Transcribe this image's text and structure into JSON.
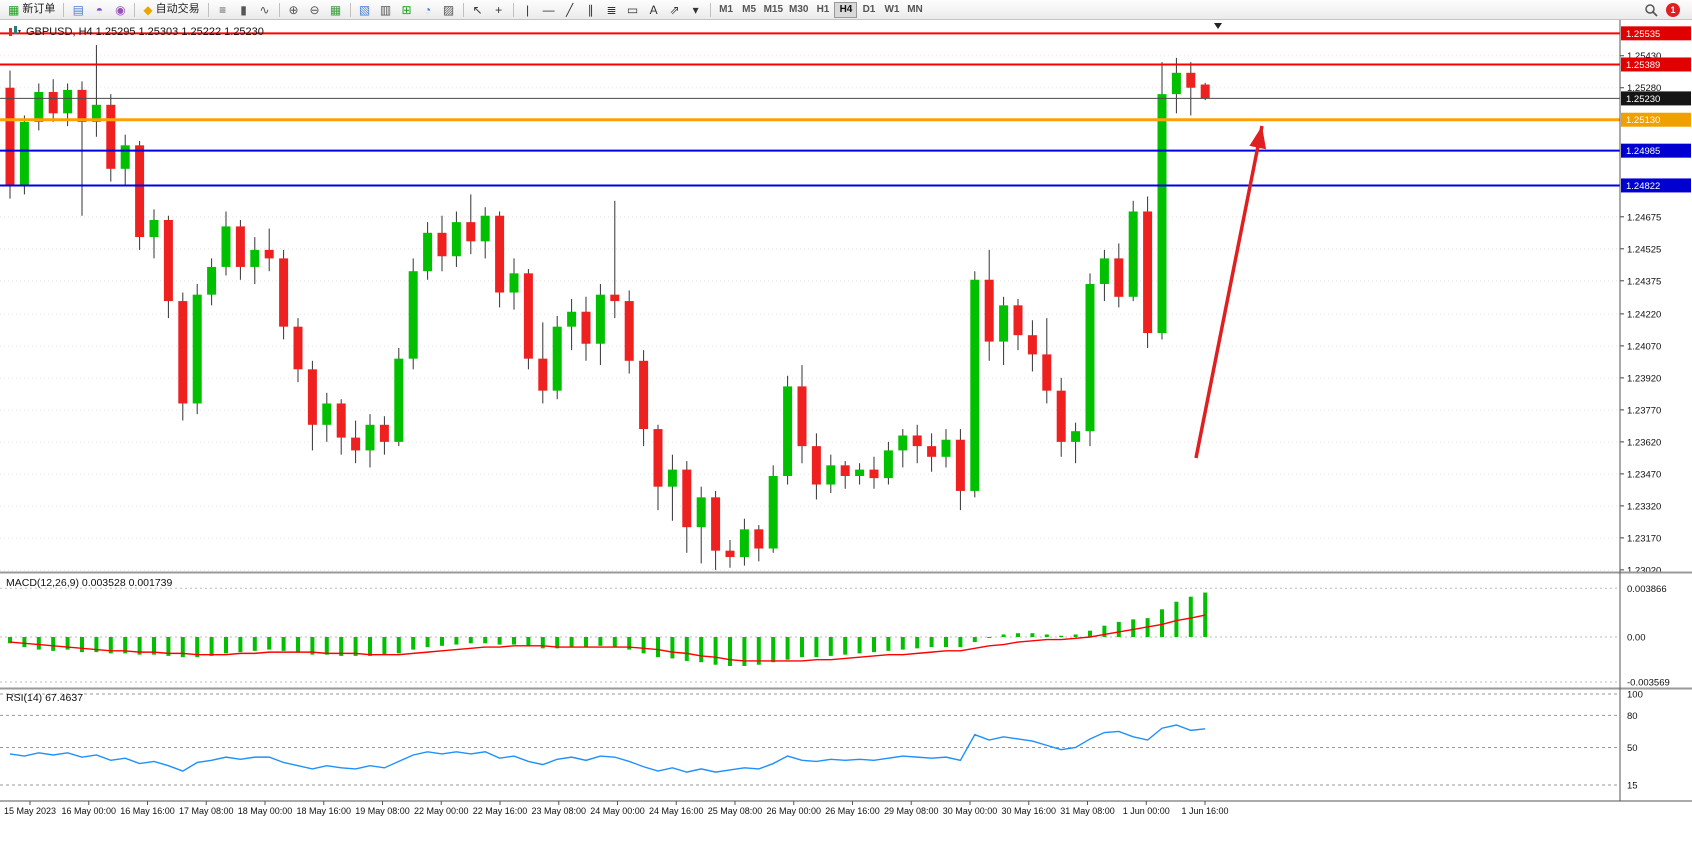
{
  "toolbar": {
    "items": [
      {
        "name": "new-order-button",
        "glyph": "▦",
        "color": "#1f9d1f",
        "label": "新订单"
      },
      {
        "sep": true
      },
      {
        "name": "terminal-icon-button",
        "glyph": "▤",
        "color": "#4a7fd4"
      },
      {
        "name": "profile-icon-button",
        "glyph": "◓",
        "color": "#7a4fd0"
      },
      {
        "name": "news-icon-button",
        "glyph": "◉",
        "color": "#9a4fc0"
      },
      {
        "sep": true
      },
      {
        "name": "auto-trading-button",
        "glyph": "◆",
        "color": "#e8a800",
        "label": "自动交易"
      },
      {
        "sep": true
      },
      {
        "name": "bar-chart-button",
        "glyph": "≡",
        "color": "#555555"
      },
      {
        "name": "candlestick-chart-button",
        "glyph": "▮",
        "color": "#555555"
      },
      {
        "name": "line-chart-button",
        "glyph": "∿",
        "color": "#555555"
      },
      {
        "sep": true
      },
      {
        "name": "zoom-in-button",
        "glyph": "⊕",
        "color": "#555555"
      },
      {
        "name": "zoom-out-button",
        "glyph": "⊖",
        "color": "#555555"
      },
      {
        "name": "tile-windows-button",
        "glyph": "▦",
        "color": "#3a9d3a"
      },
      {
        "sep": true
      },
      {
        "name": "new-chart-button",
        "glyph": "▧",
        "color": "#4a7fd4"
      },
      {
        "name": "profiles-button",
        "glyph": "▥",
        "color": "#555555"
      },
      {
        "name": "add-indicator-button",
        "glyph": "⊞",
        "color": "#1f9d1f"
      },
      {
        "name": "periods-button",
        "glyph": "◔",
        "color": "#4a7fd4"
      },
      {
        "name": "templates-button",
        "glyph": "▨",
        "color": "#555555"
      },
      {
        "sep": true
      },
      {
        "name": "cursor-button",
        "glyph": "↖",
        "color": "#333333"
      },
      {
        "name": "crosshair-button",
        "glyph": "+",
        "color": "#333333"
      },
      {
        "sep": true
      },
      {
        "name": "vertical-line-button",
        "glyph": "|",
        "color": "#333333"
      },
      {
        "name": "horizontal-line-button",
        "glyph": "—",
        "color": "#333333"
      },
      {
        "name": "trendline-button",
        "glyph": "╱",
        "color": "#333333"
      },
      {
        "name": "channel-button",
        "glyph": "∥",
        "color": "#333333"
      },
      {
        "name": "fibonacci-button",
        "glyph": "≣",
        "color": "#333333"
      },
      {
        "name": "shapes-button",
        "glyph": "▭",
        "color": "#333333"
      },
      {
        "name": "text-button",
        "glyph": "A",
        "color": "#333333"
      },
      {
        "name": "arrows-button",
        "glyph": "⇗",
        "color": "#333333"
      },
      {
        "name": "objects-dropdown-button",
        "glyph": "▾",
        "color": "#333333"
      },
      {
        "sep": true
      }
    ],
    "timeframes": [
      "M1",
      "M5",
      "M15",
      "M30",
      "H1",
      "H4",
      "D1",
      "W1",
      "MN"
    ],
    "active_timeframe": "H4",
    "notification_count": "1"
  },
  "chart": {
    "symbol_ohlc": "GBPUSD, H4 1.25295 1.25303 1.25222 1.25230",
    "up_color": "#00c000",
    "down_color": "#ee2020",
    "wick_color": "#333333",
    "arrow_color": "#e02020",
    "price_lines": [
      {
        "name": "resistance-line-upper",
        "label": "1.25535",
        "value": 1.25535,
        "color": "#ff0000",
        "label_bg": "#e00000",
        "width": 2
      },
      {
        "name": "resistance-line-lower",
        "label": "1.25389",
        "value": 1.25389,
        "color": "#ff0000",
        "label_bg": "#e00000",
        "width": 2
      },
      {
        "name": "bid-price-line",
        "label": "1.25230",
        "value": 1.2523,
        "color": "#4a4a4a",
        "label_bg": "#151515",
        "width": 1
      },
      {
        "name": "pivot-line-orange",
        "label": "1.25130",
        "value": 1.2513,
        "color": "#ffa000",
        "label_bg": "#f0a000",
        "width": 3
      },
      {
        "name": "support-line-upper",
        "label": "1.24985",
        "value": 1.24985,
        "color": "#0000e0",
        "label_bg": "#0000d0",
        "width": 2
      },
      {
        "name": "support-line-lower",
        "label": "1.24822",
        "value": 1.24822,
        "color": "#0000e0",
        "label_bg": "#0000d0",
        "width": 2
      }
    ]
  },
  "macd": {
    "label": "MACD(12,26,9) 0.003528 0.001739",
    "histogram_color": "#00c000",
    "signal_color": "#ff0000",
    "scale": [
      {
        "label": "0.003866",
        "value": 0.003866
      },
      {
        "label": "0.00",
        "value": 0
      },
      {
        "label": "-0.003569",
        "value": -0.003569
      }
    ]
  },
  "rsi": {
    "label": "RSI(14) 67.4637",
    "line_color": "#1E90FF",
    "levels": [
      {
        "label": "100",
        "value": 100
      },
      {
        "label": "80",
        "value": 80
      },
      {
        "label": "50",
        "value": 50
      },
      {
        "label": "15",
        "value": 15
      }
    ]
  },
  "chart_data": {
    "type": "candlestick",
    "symbol": "GBPUSD",
    "timeframe": "H4",
    "current_ohlc": {
      "open": "1.25295",
      "high": "1.25303",
      "low": "1.25222",
      "close": "1.25230"
    },
    "price_axis_ticks": [
      "1.25430",
      "1.25280",
      "1.24675",
      "1.24525",
      "1.24375",
      "1.24220",
      "1.24070",
      "1.23920",
      "1.23770",
      "1.23620",
      "1.23470",
      "1.23320",
      "1.23170",
      "1.23020"
    ],
    "time_labels": [
      "15 May 2023",
      "16 May 00:00",
      "16 May 16:00",
      "17 May 08:00",
      "18 May 00:00",
      "18 May 16:00",
      "19 May 08:00",
      "22 May 00:00",
      "22 May 16:00",
      "23 May 08:00",
      "24 May 00:00",
      "24 May 16:00",
      "25 May 08:00",
      "26 May 00:00",
      "26 May 16:00",
      "29 May 08:00",
      "30 May 00:00",
      "30 May 16:00",
      "31 May 08:00",
      "1 Jun 00:00",
      "1 Jun 16:00"
    ],
    "ohlc": [
      [
        1.2528,
        1.2536,
        1.2476,
        1.2482
      ],
      [
        1.2482,
        1.2515,
        1.2478,
        1.2512
      ],
      [
        1.2512,
        1.253,
        1.2508,
        1.2526
      ],
      [
        1.2526,
        1.2532,
        1.2512,
        1.2516
      ],
      [
        1.2516,
        1.253,
        1.251,
        1.2527
      ],
      [
        1.2527,
        1.2531,
        1.2468,
        1.2512
      ],
      [
        1.2512,
        1.2548,
        1.2505,
        1.252
      ],
      [
        1.252,
        1.2525,
        1.2484,
        1.249
      ],
      [
        1.249,
        1.2506,
        1.2482,
        1.2501
      ],
      [
        1.2501,
        1.2503,
        1.2452,
        1.2458
      ],
      [
        1.2458,
        1.2471,
        1.2448,
        1.2466
      ],
      [
        1.2466,
        1.2468,
        1.242,
        1.2428
      ],
      [
        1.2428,
        1.2432,
        1.2372,
        1.238
      ],
      [
        1.238,
        1.2436,
        1.2375,
        1.2431
      ],
      [
        1.2431,
        1.2448,
        1.2426,
        1.2444
      ],
      [
        1.2444,
        1.247,
        1.244,
        1.2463
      ],
      [
        1.2463,
        1.2466,
        1.2438,
        1.2444
      ],
      [
        1.2444,
        1.2458,
        1.2436,
        1.2452
      ],
      [
        1.2452,
        1.2462,
        1.2442,
        1.2448
      ],
      [
        1.2448,
        1.2452,
        1.241,
        1.2416
      ],
      [
        1.2416,
        1.242,
        1.239,
        1.2396
      ],
      [
        1.2396,
        1.24,
        1.2358,
        1.237
      ],
      [
        1.237,
        1.2385,
        1.2362,
        1.238
      ],
      [
        1.238,
        1.2382,
        1.2356,
        1.2364
      ],
      [
        1.2364,
        1.2372,
        1.2352,
        1.2358
      ],
      [
        1.2358,
        1.2375,
        1.235,
        1.237
      ],
      [
        1.237,
        1.2374,
        1.2356,
        1.2362
      ],
      [
        1.2362,
        1.2406,
        1.236,
        1.2401
      ],
      [
        1.2401,
        1.2448,
        1.2396,
        1.2442
      ],
      [
        1.2442,
        1.2465,
        1.2438,
        1.246
      ],
      [
        1.246,
        1.2468,
        1.2442,
        1.2449
      ],
      [
        1.2449,
        1.247,
        1.2444,
        1.2465
      ],
      [
        1.2465,
        1.2478,
        1.245,
        1.2456
      ],
      [
        1.2456,
        1.2472,
        1.2448,
        1.2468
      ],
      [
        1.2468,
        1.247,
        1.2425,
        1.2432
      ],
      [
        1.2432,
        1.2448,
        1.2424,
        1.2441
      ],
      [
        1.2441,
        1.2443,
        1.2396,
        1.2401
      ],
      [
        1.2401,
        1.2418,
        1.238,
        1.2386
      ],
      [
        1.2386,
        1.2421,
        1.2382,
        1.2416
      ],
      [
        1.2416,
        1.2429,
        1.2405,
        1.2423
      ],
      [
        1.2423,
        1.243,
        1.24,
        1.2408
      ],
      [
        1.2408,
        1.2436,
        1.2398,
        1.2431
      ],
      [
        1.2431,
        1.2475,
        1.242,
        1.2428
      ],
      [
        1.2428,
        1.2433,
        1.2394,
        1.24
      ],
      [
        1.24,
        1.2405,
        1.236,
        1.2368
      ],
      [
        1.2368,
        1.237,
        1.233,
        1.2341
      ],
      [
        1.2341,
        1.2356,
        1.2325,
        1.2349
      ],
      [
        1.2349,
        1.2353,
        1.231,
        1.2322
      ],
      [
        1.2322,
        1.2341,
        1.2305,
        1.2336
      ],
      [
        1.2336,
        1.2339,
        1.2302,
        1.2311
      ],
      [
        1.2311,
        1.2316,
        1.2303,
        1.2308
      ],
      [
        1.2308,
        1.2326,
        1.2304,
        1.2321
      ],
      [
        1.2321,
        1.2323,
        1.2306,
        1.2312
      ],
      [
        1.2312,
        1.2351,
        1.231,
        1.2346
      ],
      [
        1.2346,
        1.2393,
        1.2342,
        1.2388
      ],
      [
        1.2388,
        1.2398,
        1.2352,
        1.236
      ],
      [
        1.236,
        1.2366,
        1.2335,
        1.2342
      ],
      [
        1.2342,
        1.2356,
        1.2338,
        1.2351
      ],
      [
        1.2351,
        1.2353,
        1.234,
        1.2346
      ],
      [
        1.2346,
        1.2352,
        1.2342,
        1.2349
      ],
      [
        1.2349,
        1.2355,
        1.234,
        1.2345
      ],
      [
        1.2345,
        1.2362,
        1.2342,
        1.2358
      ],
      [
        1.2358,
        1.2368,
        1.235,
        1.2365
      ],
      [
        1.2365,
        1.237,
        1.2352,
        1.236
      ],
      [
        1.236,
        1.2366,
        1.2348,
        1.2355
      ],
      [
        1.2355,
        1.2368,
        1.235,
        1.2363
      ],
      [
        1.2363,
        1.2368,
        1.233,
        1.2339
      ],
      [
        1.2339,
        1.2442,
        1.2336,
        1.2438
      ],
      [
        1.2438,
        1.2452,
        1.24,
        1.2409
      ],
      [
        1.2409,
        1.243,
        1.2398,
        1.2426
      ],
      [
        1.2426,
        1.2429,
        1.2405,
        1.2412
      ],
      [
        1.2412,
        1.2419,
        1.2395,
        1.2403
      ],
      [
        1.2403,
        1.242,
        1.238,
        1.2386
      ],
      [
        1.2386,
        1.2392,
        1.2355,
        1.2362
      ],
      [
        1.2362,
        1.2371,
        1.2352,
        1.2367
      ],
      [
        1.2367,
        1.2441,
        1.236,
        1.2436
      ],
      [
        1.2436,
        1.2452,
        1.2428,
        1.2448
      ],
      [
        1.2448,
        1.2455,
        1.2425,
        1.243
      ],
      [
        1.243,
        1.2475,
        1.2428,
        1.247
      ],
      [
        1.247,
        1.2477,
        1.2406,
        1.2413
      ],
      [
        1.2413,
        1.254,
        1.241,
        1.2525
      ],
      [
        1.2525,
        1.2542,
        1.2516,
        1.2535
      ],
      [
        1.2535,
        1.254,
        1.2515,
        1.2528
      ],
      [
        1.25295,
        1.25303,
        1.25222,
        1.2523
      ]
    ],
    "macd_histogram": [
      -0.0005,
      -0.0008,
      -0.001,
      -0.0011,
      -0.001,
      -0.0012,
      -0.0012,
      -0.0013,
      -0.0013,
      -0.0014,
      -0.0014,
      -0.0015,
      -0.0016,
      -0.0016,
      -0.0015,
      -0.0013,
      -0.0012,
      -0.0011,
      -0.001,
      -0.0011,
      -0.0012,
      -0.0014,
      -0.0014,
      -0.0015,
      -0.0015,
      -0.0015,
      -0.0014,
      -0.0013,
      -0.001,
      -0.0008,
      -0.0007,
      -0.0006,
      -0.0005,
      -0.0005,
      -0.0006,
      -0.0006,
      -0.0007,
      -0.0009,
      -0.0009,
      -0.0008,
      -0.0008,
      -0.0007,
      -0.0008,
      -0.001,
      -0.0013,
      -0.0016,
      -0.0017,
      -0.0019,
      -0.002,
      -0.0022,
      -0.0023,
      -0.0023,
      -0.0022,
      -0.002,
      -0.0018,
      -0.0016,
      -0.0016,
      -0.0015,
      -0.0014,
      -0.0013,
      -0.0012,
      -0.0011,
      -0.001,
      -0.0009,
      -0.0008,
      -0.0008,
      -0.0008,
      -0.0004,
      0.0,
      0.0002,
      0.0003,
      0.0003,
      0.0002,
      0.0001,
      0.0002,
      0.0005,
      0.0009,
      0.0012,
      0.0014,
      0.0015,
      0.0022,
      0.0028,
      0.0032,
      0.003528
    ],
    "macd_signal": [
      -0.0004,
      -0.0005,
      -0.0006,
      -0.0007,
      -0.0008,
      -0.0009,
      -0.001,
      -0.0011,
      -0.0011,
      -0.0012,
      -0.0012,
      -0.0013,
      -0.0013,
      -0.0014,
      -0.0014,
      -0.0014,
      -0.0013,
      -0.0013,
      -0.0012,
      -0.0012,
      -0.0012,
      -0.0012,
      -0.0013,
      -0.0013,
      -0.0013,
      -0.0014,
      -0.0014,
      -0.0014,
      -0.0013,
      -0.0012,
      -0.0011,
      -0.001,
      -0.0009,
      -0.0008,
      -0.0008,
      -0.0007,
      -0.0007,
      -0.0007,
      -0.0008,
      -0.0008,
      -0.0008,
      -0.0008,
      -0.0008,
      -0.0008,
      -0.0009,
      -0.001,
      -0.0012,
      -0.0013,
      -0.0015,
      -0.0016,
      -0.0018,
      -0.0019,
      -0.0019,
      -0.0019,
      -0.0019,
      -0.0019,
      -0.0018,
      -0.0018,
      -0.0017,
      -0.0016,
      -0.0015,
      -0.0014,
      -0.0014,
      -0.0013,
      -0.0012,
      -0.0011,
      -0.0011,
      -0.0009,
      -0.0007,
      -0.0006,
      -0.0004,
      -0.0003,
      -0.0002,
      -0.0002,
      -0.0001,
      0.0,
      0.0002,
      0.0004,
      0.0006,
      0.0008,
      0.001,
      0.0013,
      0.0015,
      0.001739
    ],
    "rsi": [
      44,
      42,
      45,
      43,
      45,
      41,
      43,
      38,
      40,
      35,
      37,
      33,
      28,
      36,
      38,
      41,
      39,
      41,
      41,
      36,
      33,
      30,
      33,
      31,
      30,
      33,
      31,
      37,
      43,
      46,
      44,
      46,
      44,
      46,
      40,
      42,
      37,
      34,
      39,
      41,
      38,
      42,
      41,
      37,
      32,
      28,
      31,
      27,
      30,
      27,
      29,
      31,
      30,
      35,
      42,
      38,
      37,
      39,
      38,
      39,
      38,
      40,
      42,
      41,
      40,
      41,
      38,
      62,
      57,
      60,
      58,
      56,
      52,
      48,
      50,
      58,
      64,
      65,
      60,
      57,
      68,
      71,
      66,
      67.46
    ]
  }
}
